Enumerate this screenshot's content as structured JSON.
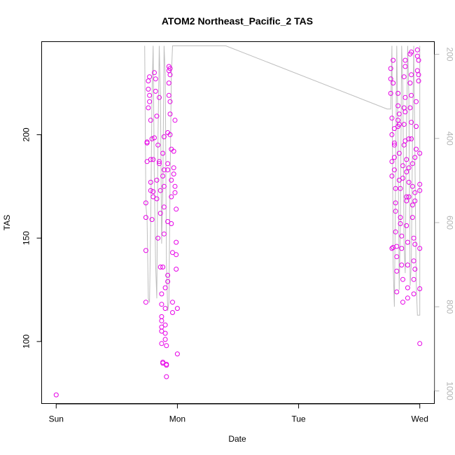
{
  "chart_data": {
    "type": "scatter",
    "title": "ATOM2 Northeast_Pacific_2 TAS",
    "xlabel": "Date",
    "ylabel": "TAS",
    "x_ticks": [
      {
        "label": "Sun",
        "value": 0
      },
      {
        "label": "Mon",
        "value": 1
      },
      {
        "label": "Tue",
        "value": 2
      },
      {
        "label": "Wed",
        "value": 3
      }
    ],
    "y_ticks": [
      100,
      150,
      200
    ],
    "ylim": [
      70,
      245
    ],
    "xlim": [
      -0.12,
      3.12
    ],
    "secondary_axis": {
      "ticks": [
        200,
        400,
        600,
        800,
        1000
      ],
      "range_top": 170,
      "range_bottom": 1030,
      "color": "#b4b4b4"
    },
    "colors": {
      "points": "#e600e6",
      "line": "#bebebe"
    },
    "series": [
      {
        "type": "scatter",
        "points": [
          [
            0.0,
            74.2
          ],
          [
            0.74,
            167
          ],
          [
            0.74,
            160
          ],
          [
            0.74,
            144
          ],
          [
            0.74,
            119
          ],
          [
            0.75,
            196
          ],
          [
            0.75,
            187
          ],
          [
            0.75,
            196.5
          ],
          [
            0.76,
            213
          ],
          [
            0.76,
            222
          ],
          [
            0.76,
            226
          ],
          [
            0.77,
            228
          ],
          [
            0.77,
            219
          ],
          [
            0.77,
            216
          ],
          [
            0.78,
            207
          ],
          [
            0.78,
            188
          ],
          [
            0.78,
            177
          ],
          [
            0.78,
            173
          ],
          [
            0.79,
            159
          ],
          [
            0.79,
            198
          ],
          [
            0.8,
            188
          ],
          [
            0.8,
            172.5
          ],
          [
            0.8,
            170
          ],
          [
            0.81,
            198.5
          ],
          [
            0.81,
            230
          ],
          [
            0.82,
            227
          ],
          [
            0.82,
            221
          ],
          [
            0.83,
            209
          ],
          [
            0.83,
            178
          ],
          [
            0.83,
            169
          ],
          [
            0.84,
            150
          ],
          [
            0.84,
            195
          ],
          [
            0.85,
            218
          ],
          [
            0.85,
            187
          ],
          [
            0.85,
            186
          ],
          [
            0.86,
            173
          ],
          [
            0.86,
            162
          ],
          [
            0.86,
            136
          ],
          [
            0.87,
            123
          ],
          [
            0.87,
            118
          ],
          [
            0.87,
            112
          ],
          [
            0.87,
            110
          ],
          [
            0.87,
            107
          ],
          [
            0.87,
            105
          ],
          [
            0.87,
            99
          ],
          [
            0.88,
            90
          ],
          [
            0.88,
            89.5
          ],
          [
            0.88,
            136
          ],
          [
            0.88,
            180
          ],
          [
            0.88,
            191
          ],
          [
            0.89,
            199
          ],
          [
            0.89,
            183
          ],
          [
            0.89,
            175
          ],
          [
            0.89,
            165
          ],
          [
            0.89,
            152
          ],
          [
            0.9,
            126
          ],
          [
            0.9,
            116
          ],
          [
            0.9,
            108
          ],
          [
            0.9,
            104
          ],
          [
            0.9,
            101
          ],
          [
            0.91,
            89
          ],
          [
            0.91,
            88.5
          ],
          [
            0.91,
            83
          ],
          [
            0.91,
            98
          ],
          [
            0.92,
            129
          ],
          [
            0.92,
            132
          ],
          [
            0.92,
            158
          ],
          [
            0.92,
            183
          ],
          [
            0.92,
            186
          ],
          [
            0.92,
            201
          ],
          [
            0.93,
            219
          ],
          [
            0.93,
            225
          ],
          [
            0.93,
            231
          ],
          [
            0.93,
            233
          ],
          [
            0.94,
            232
          ],
          [
            0.94,
            229
          ],
          [
            0.94,
            216
          ],
          [
            0.94,
            210
          ],
          [
            0.94,
            200
          ],
          [
            0.95,
            193
          ],
          [
            0.95,
            178
          ],
          [
            0.95,
            170
          ],
          [
            0.95,
            157
          ],
          [
            0.96,
            143
          ],
          [
            0.96,
            114
          ],
          [
            0.96,
            119
          ],
          [
            0.97,
            181
          ],
          [
            0.97,
            184
          ],
          [
            0.97,
            192
          ],
          [
            0.98,
            207
          ],
          [
            0.98,
            175
          ],
          [
            0.98,
            172
          ],
          [
            0.99,
            164
          ],
          [
            0.99,
            148
          ],
          [
            0.99,
            142
          ],
          [
            0.99,
            135
          ],
          [
            1.0,
            116
          ],
          [
            1.0,
            94
          ],
          [
            2.76,
            232
          ],
          [
            2.76,
            227
          ],
          [
            2.76,
            220
          ],
          [
            2.77,
            208
          ],
          [
            2.77,
            200
          ],
          [
            2.77,
            187
          ],
          [
            2.77,
            180
          ],
          [
            2.77,
            145
          ],
          [
            2.78,
            145.5
          ],
          [
            2.78,
            236
          ],
          [
            2.78,
            225
          ],
          [
            2.79,
            203
          ],
          [
            2.79,
            196
          ],
          [
            2.79,
            195
          ],
          [
            2.79,
            189
          ],
          [
            2.79,
            183
          ],
          [
            2.8,
            174
          ],
          [
            2.8,
            167
          ],
          [
            2.8,
            163
          ],
          [
            2.8,
            153
          ],
          [
            2.81,
            146
          ],
          [
            2.81,
            141
          ],
          [
            2.81,
            134
          ],
          [
            2.81,
            124
          ],
          [
            2.82,
            204
          ],
          [
            2.82,
            207
          ],
          [
            2.82,
            214
          ],
          [
            2.82,
            220
          ],
          [
            2.83,
            210
          ],
          [
            2.83,
            205
          ],
          [
            2.83,
            191
          ],
          [
            2.83,
            178
          ],
          [
            2.84,
            174
          ],
          [
            2.84,
            160
          ],
          [
            2.84,
            157
          ],
          [
            2.85,
            151
          ],
          [
            2.85,
            145
          ],
          [
            2.85,
            137
          ],
          [
            2.86,
            130
          ],
          [
            2.86,
            119
          ],
          [
            2.86,
            179
          ],
          [
            2.86,
            185
          ],
          [
            2.87,
            195
          ],
          [
            2.87,
            205
          ],
          [
            2.87,
            213
          ],
          [
            2.87,
            228
          ],
          [
            2.88,
            236
          ],
          [
            2.88,
            233
          ],
          [
            2.88,
            218
          ],
          [
            2.88,
            211
          ],
          [
            2.88,
            197
          ],
          [
            2.89,
            188
          ],
          [
            2.89,
            182
          ],
          [
            2.89,
            170
          ],
          [
            2.89,
            168
          ],
          [
            2.89,
            156
          ],
          [
            2.9,
            148
          ],
          [
            2.9,
            126
          ],
          [
            2.9,
            121
          ],
          [
            2.9,
            137
          ],
          [
            2.91,
            170
          ],
          [
            2.91,
            177
          ],
          [
            2.91,
            184
          ],
          [
            2.91,
            198
          ],
          [
            2.92,
            213
          ],
          [
            2.92,
            225
          ],
          [
            2.92,
            239
          ],
          [
            2.93,
            240
          ],
          [
            2.93,
            229
          ],
          [
            2.93,
            219
          ],
          [
            2.93,
            206
          ],
          [
            2.93,
            198
          ],
          [
            2.94,
            186
          ],
          [
            2.94,
            175
          ],
          [
            2.94,
            166
          ],
          [
            2.94,
            160
          ],
          [
            2.95,
            150
          ],
          [
            2.95,
            139
          ],
          [
            2.95,
            130
          ],
          [
            2.95,
            123
          ],
          [
            2.96,
            135
          ],
          [
            2.96,
            147
          ],
          [
            2.96,
            168
          ],
          [
            2.96,
            172
          ],
          [
            2.96,
            189
          ],
          [
            2.97,
            193
          ],
          [
            2.97,
            204
          ],
          [
            2.97,
            216
          ],
          [
            2.98,
            231
          ],
          [
            2.98,
            238
          ],
          [
            2.98,
            241
          ],
          [
            2.99,
            236
          ],
          [
            2.99,
            229
          ],
          [
            2.99,
            226
          ],
          [
            3.0,
            191
          ],
          [
            3.0,
            176
          ],
          [
            3.0,
            173
          ],
          [
            3.0,
            145
          ],
          [
            3.0,
            125.5
          ],
          [
            3.0,
            99
          ]
        ]
      },
      {
        "type": "line",
        "axis": "secondary",
        "points": [
          [
            0.73,
            180
          ],
          [
            0.74,
            560
          ],
          [
            0.75,
            590
          ],
          [
            0.76,
            780
          ],
          [
            0.77,
            790
          ],
          [
            0.78,
            600
          ],
          [
            0.79,
            300
          ],
          [
            0.8,
            180
          ],
          [
            0.81,
            500
          ],
          [
            0.82,
            700
          ],
          [
            0.83,
            780
          ],
          [
            0.84,
            400
          ],
          [
            0.85,
            180
          ],
          [
            0.86,
            300
          ],
          [
            0.87,
            650
          ],
          [
            0.88,
            520
          ],
          [
            0.89,
            180
          ],
          [
            0.9,
            250
          ],
          [
            0.91,
            700
          ],
          [
            0.92,
            810
          ],
          [
            0.93,
            790
          ],
          [
            0.94,
            500
          ],
          [
            0.95,
            250
          ],
          [
            0.96,
            180
          ],
          [
            0.97,
            180
          ],
          [
            1.4,
            180
          ],
          [
            2.73,
            330
          ],
          [
            2.76,
            330
          ],
          [
            2.77,
            180
          ],
          [
            2.78,
            700
          ],
          [
            2.79,
            800
          ],
          [
            2.8,
            500
          ],
          [
            2.81,
            180
          ],
          [
            2.82,
            400
          ],
          [
            2.83,
            760
          ],
          [
            2.84,
            600
          ],
          [
            2.85,
            180
          ],
          [
            2.86,
            280
          ],
          [
            2.87,
            650
          ],
          [
            2.88,
            720
          ],
          [
            2.89,
            380
          ],
          [
            2.9,
            180
          ],
          [
            2.91,
            300
          ],
          [
            2.92,
            750
          ],
          [
            2.93,
            700
          ],
          [
            2.94,
            400
          ],
          [
            2.95,
            180
          ],
          [
            2.96,
            450
          ],
          [
            2.97,
            740
          ],
          [
            2.98,
            820
          ],
          [
            2.99,
            820
          ],
          [
            3.0,
            820
          ],
          [
            3.0,
            180
          ]
        ]
      }
    ]
  }
}
